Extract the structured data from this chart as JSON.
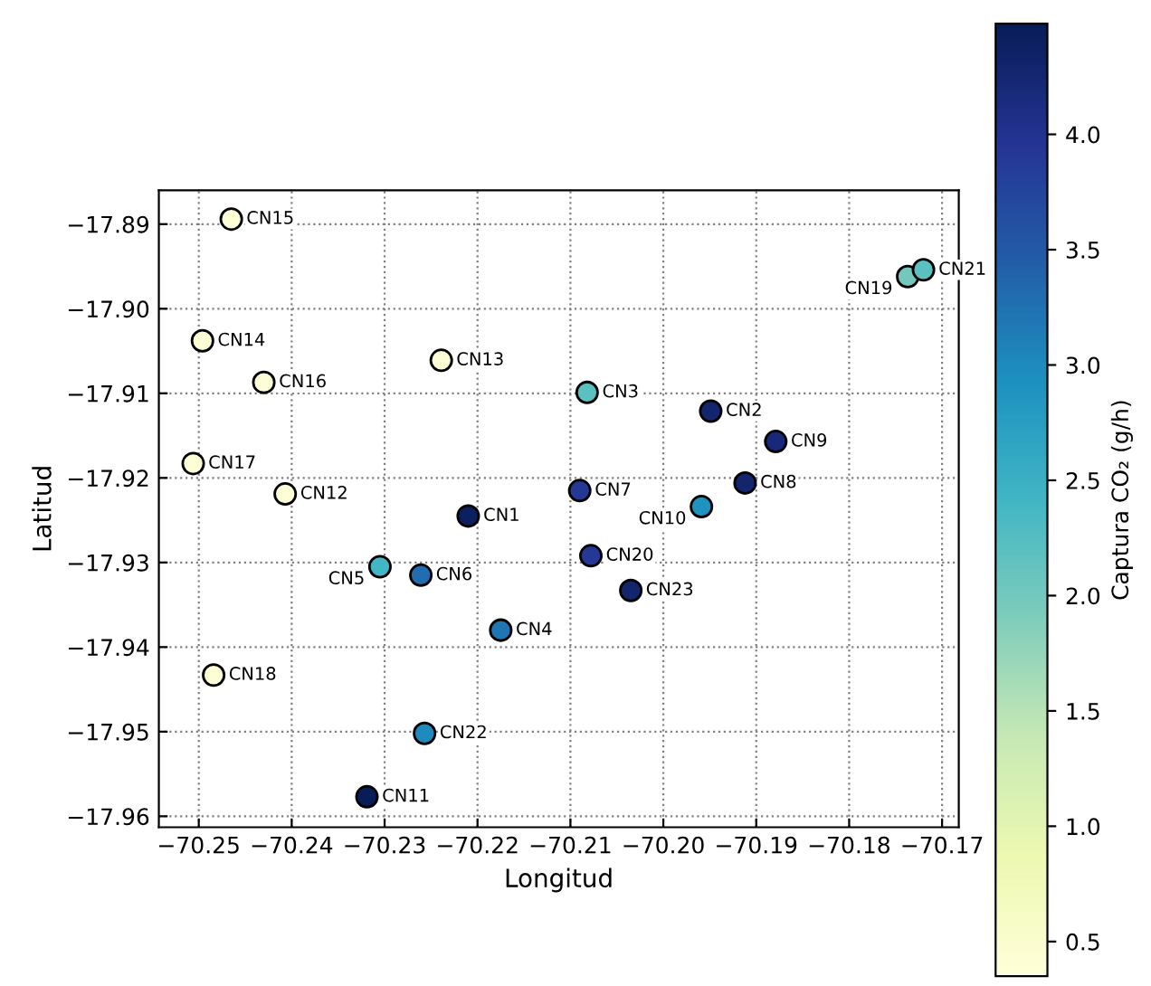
{
  "chart_data": {
    "type": "scatter",
    "xlabel": "Longitud",
    "ylabel": "Latitud",
    "clabel": "Captura CO₂ (g/h)",
    "x": [
      -70.221,
      -70.1949,
      -70.2082,
      -70.2175,
      -70.2305,
      -70.2261,
      -70.209,
      -70.1912,
      -70.1879,
      -70.1959,
      -70.2319,
      -70.2407,
      -70.2239,
      -70.2496,
      -70.2465,
      -70.243,
      -70.2506,
      -70.2484,
      -70.1737,
      -70.2078,
      -70.172,
      -70.2257,
      -70.2035
    ],
    "values": [
      -17.9245,
      -17.9121,
      -17.9099,
      -17.938,
      -17.9305,
      -17.9315,
      -17.9215,
      -17.9206,
      -17.9157,
      -17.9234,
      -17.9577,
      -17.9219,
      -17.9061,
      -17.9038,
      -17.8894,
      -17.9087,
      -17.9183,
      -17.9433,
      -17.8962,
      -17.9292,
      -17.8954,
      -17.9502,
      -17.9333
    ],
    "cvalues": [
      4.4,
      4.3,
      2.2,
      3.2,
      2.4,
      3.3,
      3.9,
      4.3,
      4.2,
      2.9,
      4.5,
      0.4,
      0.4,
      0.4,
      0.4,
      0.4,
      0.4,
      0.4,
      2.0,
      3.9,
      2.2,
      3.0,
      4.3
    ],
    "clim": [
      0.35,
      4.48
    ],
    "cticks": [
      0.5,
      {
        "value": 1,
        "label": "1.0"
      },
      1.5,
      {
        "value": 2,
        "label": "2.0"
      },
      2.5,
      {
        "value": 3,
        "label": "3.0"
      },
      3.5,
      {
        "value": 4,
        "label": "4.0"
      }
    ],
    "xlim": [
      -70.2543,
      -70.1682
    ],
    "ylim": [
      -17.9613,
      -17.886
    ],
    "xticks": [
      {
        "value": -70.25,
        "label": "−70.25"
      },
      {
        "value": -70.24,
        "label": "−70.24"
      },
      {
        "value": -70.23,
        "label": "−70.23"
      },
      {
        "value": -70.22,
        "label": "−70.22"
      },
      {
        "value": -70.21,
        "label": "−70.21"
      },
      {
        "value": -70.2,
        "label": "−70.20"
      },
      {
        "value": -70.19,
        "label": "−70.19"
      },
      {
        "value": -70.18,
        "label": "−70.18"
      },
      {
        "value": -70.17,
        "label": "−70.17"
      }
    ],
    "yticks": [
      {
        "value": -17.89,
        "label": "−17.89"
      },
      {
        "value": -17.9,
        "label": "−17.90"
      },
      {
        "value": -17.91,
        "label": "−17.91"
      },
      {
        "value": -17.92,
        "label": "−17.92"
      },
      {
        "value": -17.93,
        "label": "−17.93"
      },
      {
        "value": -17.94,
        "label": "−17.94"
      },
      {
        "value": -17.95,
        "label": "−17.95"
      },
      {
        "value": -17.96,
        "label": "−17.96"
      }
    ],
    "grid": true,
    "marker": "circle",
    "annotations": [
      {
        "text": "CN1",
        "x": -70.221,
        "y": -17.9245
      },
      {
        "text": "CN2",
        "x": -70.1949,
        "y": -17.9121
      },
      {
        "text": "CN3",
        "x": -70.2082,
        "y": -17.9099
      },
      {
        "text": "CN4",
        "x": -70.2175,
        "y": -17.938
      },
      {
        "text": "CN5",
        "x": -70.2305,
        "y": -17.9305
      },
      {
        "text": "CN6",
        "x": -70.2261,
        "y": -17.9315
      },
      {
        "text": "CN7",
        "x": -70.209,
        "y": -17.9215
      },
      {
        "text": "CN8",
        "x": -70.1912,
        "y": -17.9206
      },
      {
        "text": "CN9",
        "x": -70.1879,
        "y": -17.9157
      },
      {
        "text": "CN10",
        "x": -70.1959,
        "y": -17.9234
      },
      {
        "text": "CN11",
        "x": -70.2319,
        "y": -17.9577
      },
      {
        "text": "CN12",
        "x": -70.2407,
        "y": -17.9219
      },
      {
        "text": "CN13",
        "x": -70.2239,
        "y": -17.9061
      },
      {
        "text": "CN14",
        "x": -70.2496,
        "y": -17.9038
      },
      {
        "text": "CN15",
        "x": -70.2465,
        "y": -17.8894
      },
      {
        "text": "CN16",
        "x": -70.243,
        "y": -17.9087
      },
      {
        "text": "CN17",
        "x": -70.2506,
        "y": -17.9183
      },
      {
        "text": "CN18",
        "x": -70.2484,
        "y": -17.9433
      },
      {
        "text": "CN19",
        "x": -70.1737,
        "y": -17.8962
      },
      {
        "text": "CN20",
        "x": -70.2078,
        "y": -17.9292
      },
      {
        "text": "CN21",
        "x": -70.172,
        "y": -17.8954
      },
      {
        "text": "CN22",
        "x": -70.2257,
        "y": -17.9502
      },
      {
        "text": "CN23",
        "x": -70.2035,
        "y": -17.9333
      }
    ]
  }
}
